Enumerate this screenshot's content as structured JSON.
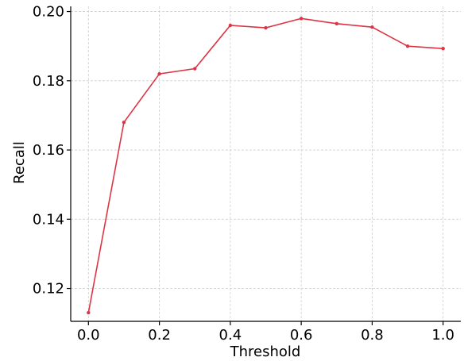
{
  "chart_data": {
    "type": "line",
    "title": "",
    "xlabel": "Threshold",
    "ylabel": "Recall",
    "xlim": [
      -0.05,
      1.05
    ],
    "ylim": [
      0.1105,
      0.2015
    ],
    "x_ticks": [
      0.0,
      0.2,
      0.4,
      0.6,
      0.8,
      1.0
    ],
    "x_tick_labels": [
      "0.0",
      "0.2",
      "0.4",
      "0.6",
      "0.8",
      "1.0"
    ],
    "y_ticks": [
      0.12,
      0.14,
      0.16,
      0.18,
      0.2
    ],
    "y_tick_labels": [
      "0.12",
      "0.14",
      "0.16",
      "0.18",
      "0.20"
    ],
    "grid": true,
    "series": [
      {
        "color": "#dc3545",
        "x": [
          0.0,
          0.1,
          0.2,
          0.3,
          0.4,
          0.5,
          0.6,
          0.7,
          0.8,
          0.9,
          1.0
        ],
        "y": [
          0.113,
          0.168,
          0.182,
          0.1835,
          0.196,
          0.1953,
          0.198,
          0.1965,
          0.1955,
          0.19,
          0.1893
        ]
      }
    ]
  }
}
